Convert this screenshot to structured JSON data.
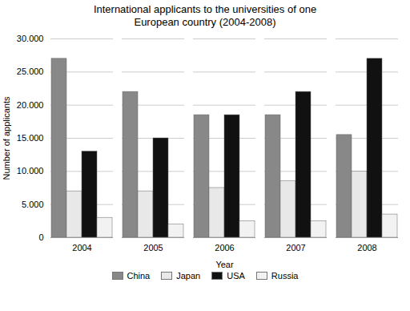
{
  "chart_data": {
    "type": "bar",
    "title": "International applicants to the universities of one\nEuropean country (2004-2008)",
    "xlabel": "Year",
    "ylabel": "Number of applicants",
    "categories": [
      "2004",
      "2005",
      "2006",
      "2007",
      "2008"
    ],
    "series": [
      {
        "name": "China",
        "color": "#888888",
        "values": [
          27000,
          22000,
          18500,
          18500,
          15500
        ]
      },
      {
        "name": "Japan",
        "color": "#e8e8e8",
        "values": [
          7000,
          7000,
          7500,
          8500,
          10000
        ]
      },
      {
        "name": "USA",
        "color": "#111111",
        "values": [
          13000,
          15000,
          18500,
          22000,
          27000
        ]
      },
      {
        "name": "Russia",
        "color": "#f2f2f2",
        "values": [
          3000,
          2000,
          2500,
          2500,
          3500
        ]
      }
    ],
    "ylim": [
      0,
      30000
    ],
    "yticks": [
      0,
      {
        "value": 5000,
        "label": "5.000"
      },
      {
        "value": 10000,
        "label": "10.000"
      },
      {
        "value": 15000,
        "label": "15.000"
      },
      {
        "value": 20000,
        "label": "20.000"
      },
      {
        "value": 25000,
        "label": "25.000"
      },
      {
        "value": 30000,
        "label": "30.000"
      }
    ],
    "grid": true,
    "legend": "bottom"
  }
}
